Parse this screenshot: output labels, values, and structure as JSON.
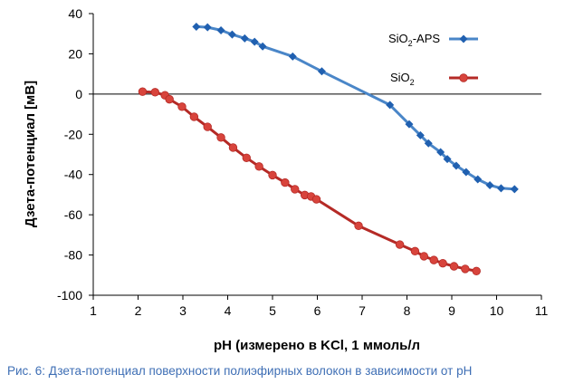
{
  "chart_data": {
    "type": "line",
    "title": "",
    "xlabel": "pH (измерено в KCl, 1 ммоль/л",
    "ylabel": "Дзета-потенциал [мВ]",
    "xlim": [
      1,
      11
    ],
    "ylim": [
      -100,
      40
    ],
    "xticks": [
      "1",
      "2",
      "3",
      "4",
      "5",
      "6",
      "7",
      "8",
      "9",
      "10",
      "11"
    ],
    "yticks": [
      "40",
      "20",
      "0",
      "-20",
      "-40",
      "-60",
      "-80",
      "-100"
    ],
    "grid": false,
    "zero_line": true,
    "legend_position": "top-right",
    "series": [
      {
        "name_base": "SiO",
        "name_sub": "2",
        "name_suffix": "-APS",
        "color": "#4a86c8",
        "marker_color": "#2060b0",
        "marker": "diamond",
        "points": [
          [
            3.3,
            33.5
          ],
          [
            3.55,
            33.2
          ],
          [
            3.85,
            31.7
          ],
          [
            4.1,
            29.6
          ],
          [
            4.38,
            27.7
          ],
          [
            4.6,
            26.0
          ],
          [
            4.78,
            23.7
          ],
          [
            5.45,
            18.7
          ],
          [
            6.1,
            11.3
          ],
          [
            7.62,
            -5.4
          ],
          [
            8.05,
            -15.0
          ],
          [
            8.3,
            -20.5
          ],
          [
            8.48,
            -24.5
          ],
          [
            8.75,
            -28.9
          ],
          [
            8.9,
            -32.3
          ],
          [
            9.1,
            -35.6
          ],
          [
            9.32,
            -38.8
          ],
          [
            9.58,
            -42.4
          ],
          [
            9.85,
            -45.3
          ],
          [
            10.1,
            -46.8
          ],
          [
            10.4,
            -47.3
          ]
        ]
      },
      {
        "name_base": "SiO",
        "name_sub": "2",
        "name_suffix": "",
        "color": "#b52a26",
        "marker_color": "#d8443c",
        "marker": "circle",
        "points": [
          [
            2.1,
            1.2
          ],
          [
            2.38,
            0.9
          ],
          [
            2.6,
            -0.6
          ],
          [
            2.7,
            -2.6
          ],
          [
            2.98,
            -6.3
          ],
          [
            3.25,
            -11.3
          ],
          [
            3.55,
            -16.3
          ],
          [
            3.85,
            -21.6
          ],
          [
            4.12,
            -26.6
          ],
          [
            4.42,
            -31.7
          ],
          [
            4.7,
            -36.0
          ],
          [
            5.0,
            -40.3
          ],
          [
            5.28,
            -44.0
          ],
          [
            5.5,
            -47.3
          ],
          [
            5.72,
            -50.2
          ],
          [
            5.86,
            -50.9
          ],
          [
            5.98,
            -52.3
          ],
          [
            6.92,
            -65.5
          ],
          [
            7.84,
            -74.8
          ],
          [
            8.18,
            -78.1
          ],
          [
            8.38,
            -80.6
          ],
          [
            8.6,
            -82.5
          ],
          [
            8.8,
            -84.1
          ],
          [
            9.05,
            -85.6
          ],
          [
            9.3,
            -86.9
          ],
          [
            9.55,
            -88.0
          ]
        ]
      }
    ]
  },
  "caption": "Рис. 6: Дзета-потенциал поверхности полиэфирных волокон в зависимости от pH",
  "colors": {
    "caption": "#3f6fb5",
    "axis": "#000000"
  }
}
